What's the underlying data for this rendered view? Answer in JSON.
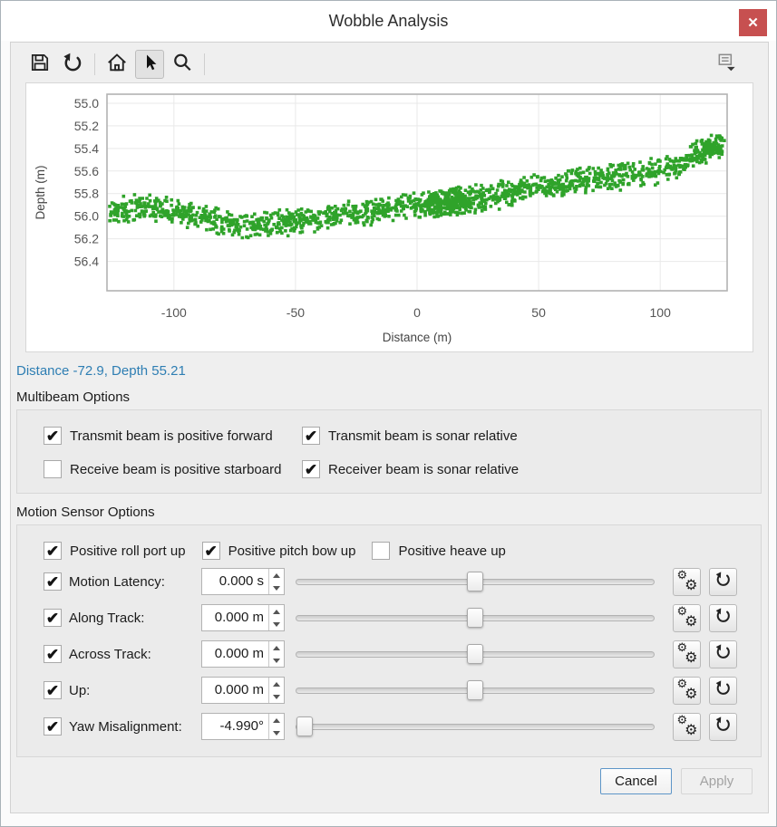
{
  "window": {
    "title": "Wobble Analysis",
    "close_glyph": "✕"
  },
  "toolbar": {
    "items": [
      {
        "name": "save"
      },
      {
        "name": "undo"
      },
      {
        "name": "home"
      },
      {
        "name": "pointer",
        "active": true
      },
      {
        "name": "zoom"
      }
    ],
    "overflow": "chart-options"
  },
  "chart_data": {
    "type": "scatter",
    "title": "",
    "xlabel": "Distance (m)",
    "ylabel": "Depth (m)",
    "x_ticks": [
      -100,
      -50,
      0,
      50,
      100
    ],
    "y_ticks": [
      55.0,
      55.2,
      55.4,
      55.6,
      55.8,
      56.0,
      56.2,
      56.4
    ],
    "xlim": [
      -127.5,
      127.5
    ],
    "ylim": [
      54.92,
      56.66
    ],
    "y_inverted": true,
    "grid": true,
    "marker": {
      "shape": "square",
      "size": 3.6,
      "color": "#2fa32a"
    },
    "n_points": 1500,
    "noise": 0.13,
    "trend": [
      [
        -127,
        55.95
      ],
      [
        -115,
        55.93
      ],
      [
        -105,
        55.95
      ],
      [
        -95,
        55.99
      ],
      [
        -85,
        56.03
      ],
      [
        -75,
        56.07
      ],
      [
        -68,
        56.08
      ],
      [
        -60,
        56.06
      ],
      [
        -50,
        56.04
      ],
      [
        -40,
        56.02
      ],
      [
        -30,
        55.99
      ],
      [
        -20,
        55.96
      ],
      [
        -10,
        55.93
      ],
      [
        0,
        55.9
      ],
      [
        10,
        55.89
      ],
      [
        20,
        55.86
      ],
      [
        30,
        55.83
      ],
      [
        40,
        55.79
      ],
      [
        50,
        55.74
      ],
      [
        60,
        55.71
      ],
      [
        70,
        55.68
      ],
      [
        80,
        55.66
      ],
      [
        90,
        55.63
      ],
      [
        100,
        55.6
      ],
      [
        107,
        55.56
      ],
      [
        113,
        55.47
      ],
      [
        120,
        55.4
      ],
      [
        127,
        55.38
      ]
    ],
    "clusters": [
      {
        "x": 12,
        "sd": 7,
        "n": 170
      },
      {
        "x": 119,
        "sd": 5,
        "n": 90
      }
    ]
  },
  "status_text": "Distance -72.9, Depth 55.21",
  "multibeam": {
    "title": "Multibeam Options",
    "checkboxes": [
      {
        "label": "Transmit beam is positive forward",
        "checked": true
      },
      {
        "label": "Transmit beam is sonar relative",
        "checked": true
      },
      {
        "label": "Receive beam is positive starboard",
        "checked": false
      },
      {
        "label": "Receiver beam is sonar relative",
        "checked": true
      }
    ]
  },
  "motion": {
    "title": "Motion Sensor Options",
    "toggles": [
      {
        "label": "Positive roll port up",
        "checked": true
      },
      {
        "label": "Positive pitch bow up",
        "checked": true
      },
      {
        "label": "Positive heave up",
        "checked": false
      }
    ],
    "rows": [
      {
        "label": "Motion Latency:",
        "value": "0.000 s",
        "checked": true,
        "slider_pos": 0.5
      },
      {
        "label": "Along Track:",
        "value": "0.000 m",
        "checked": true,
        "slider_pos": 0.5
      },
      {
        "label": "Across Track:",
        "value": "0.000 m",
        "checked": true,
        "slider_pos": 0.5
      },
      {
        "label": "Up:",
        "value": "0.000 m",
        "checked": true,
        "slider_pos": 0.5
      },
      {
        "label": "Yaw Misalignment:",
        "value": "-4.990°",
        "checked": true,
        "slider_pos": 0.002
      }
    ],
    "row_buttons": [
      {
        "name": "settings-gears"
      },
      {
        "name": "reset-undo"
      }
    ]
  },
  "footer": {
    "cancel_label": "Cancel",
    "apply_label": "Apply",
    "apply_enabled": false
  },
  "icons": {
    "check": "✔",
    "gear": "⚙"
  },
  "colors": {
    "point_green": "#2fa32a",
    "status_blue": "#2e7eb3",
    "close_red": "#c75050",
    "grid_gray": "#e9e9e9",
    "frame_gray": "#b3b3b3"
  }
}
